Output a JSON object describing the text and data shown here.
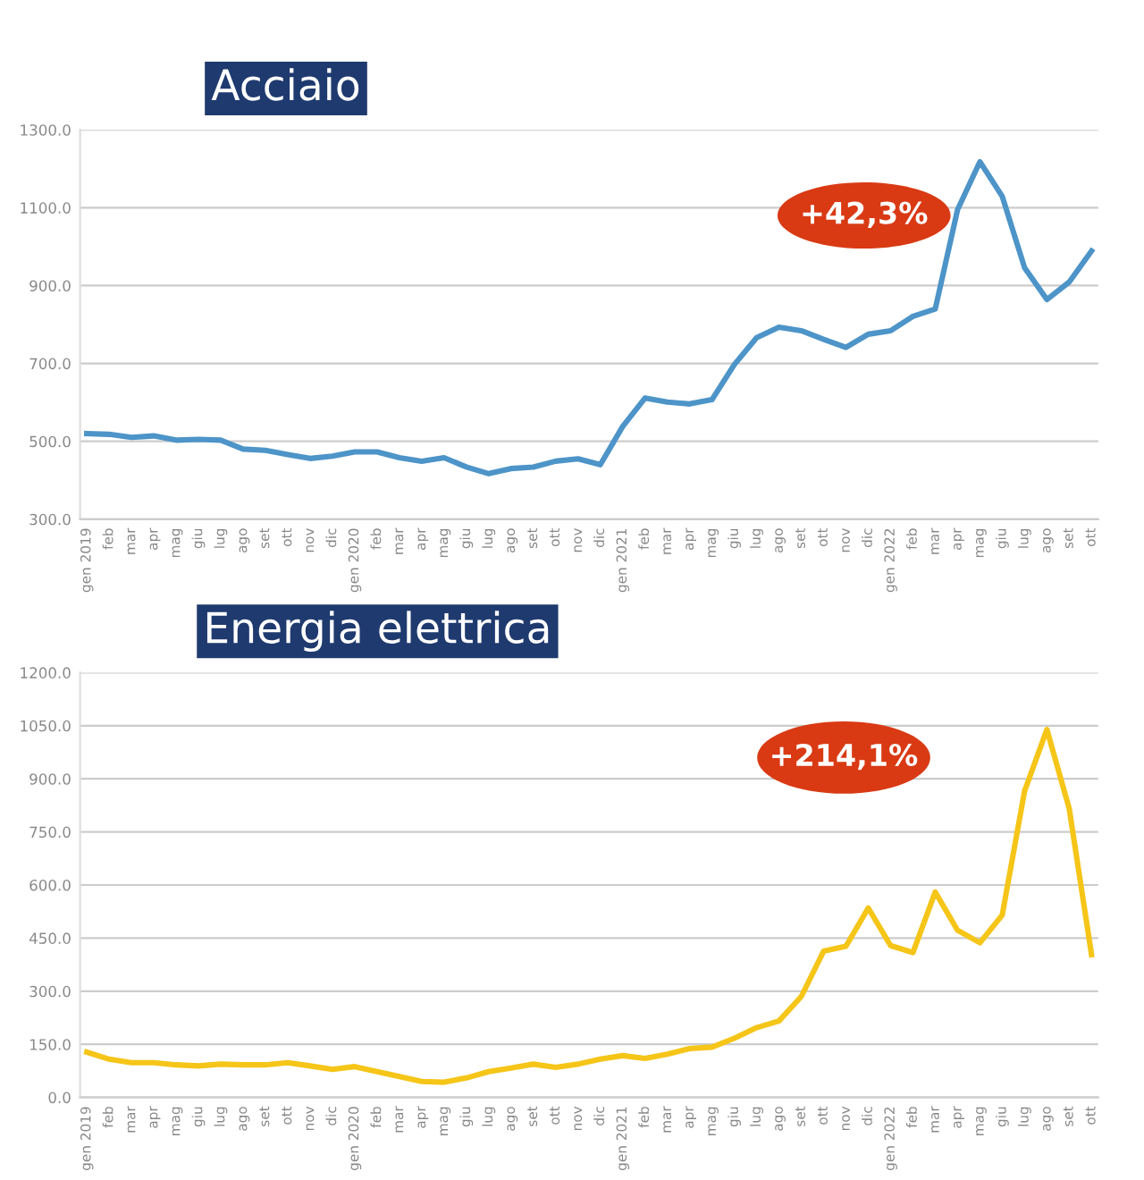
{
  "chart_data": [
    {
      "type": "line",
      "title": "Acciaio",
      "categories": [
        "gen 2019",
        "feb",
        "mar",
        "apr",
        "mag",
        "giu",
        "lug",
        "ago",
        "set",
        "ott",
        "nov",
        "dic",
        "gen 2020",
        "feb",
        "mar",
        "apr",
        "mag",
        "giu",
        "lug",
        "ago",
        "set",
        "ott",
        "nov",
        "dic",
        "gen 2021",
        "feb",
        "mar",
        "apr",
        "mag",
        "giu",
        "lug",
        "ago",
        "set",
        "ott",
        "nov",
        "dic",
        "gen 2022",
        "feb",
        "mar",
        "apr",
        "mag",
        "giu",
        "lug",
        "ago",
        "set",
        "ott"
      ],
      "series": [
        {
          "color": "#4d94c8",
          "values": [
            520,
            518,
            510,
            514,
            503,
            505,
            503,
            480,
            477,
            466,
            456,
            462,
            473,
            473,
            458,
            449,
            458,
            434,
            417,
            430,
            434,
            449,
            455,
            440,
            538,
            611,
            601,
            596,
            607,
            697,
            766,
            793,
            784,
            762,
            741,
            775,
            784,
            821,
            840,
            1095,
            1218,
            1129,
            946,
            864,
            909,
            989
          ]
        }
      ],
      "ylim": [
        300,
        1300
      ],
      "yticks": [
        {
          "value": 300,
          "label": "300.0"
        },
        {
          "value": 500,
          "label": "500.0"
        },
        {
          "value": 700,
          "label": "700.0"
        },
        {
          "value": 900,
          "label": "900.0"
        },
        {
          "value": 1100,
          "label": "1100.0"
        },
        {
          "value": 1300,
          "label": "1300.0"
        }
      ],
      "grid": "y",
      "annotations": [
        "+42,3%"
      ]
    },
    {
      "type": "line",
      "title": "Energia elettrica",
      "categories": [
        "gen 2019",
        "feb",
        "mar",
        "apr",
        "mag",
        "giu",
        "lug",
        "ago",
        "set",
        "ott",
        "nov",
        "dic",
        "gen 2020",
        "feb",
        "mar",
        "apr",
        "mag",
        "giu",
        "lug",
        "ago",
        "set",
        "ott",
        "nov",
        "dic",
        "gen 2021",
        "feb",
        "mar",
        "apr",
        "mag",
        "giu",
        "lug",
        "ago",
        "set",
        "ott",
        "nov",
        "dic",
        "gen 2022",
        "feb",
        "mar",
        "apr",
        "mag",
        "giu",
        "lug",
        "ago",
        "set",
        "ott"
      ],
      "series": [
        {
          "color": "#f5c518",
          "values": [
            128,
            108,
            98,
            98,
            92,
            89,
            94,
            92,
            92,
            98,
            89,
            79,
            87,
            73,
            59,
            45,
            43,
            55,
            73,
            83,
            94,
            85,
            94,
            108,
            118,
            110,
            122,
            138,
            142,
            167,
            197,
            216,
            285,
            413,
            427,
            535,
            429,
            409,
            580,
            472,
            437,
            515,
            865,
            1039,
            816,
            403
          ]
        }
      ],
      "ylim": [
        0,
        1200
      ],
      "yticks": [
        {
          "value": 0,
          "label": "0.0"
        },
        {
          "value": 150,
          "label": "150.0"
        },
        {
          "value": 300,
          "label": "300.0"
        },
        {
          "value": 450,
          "label": "450.0"
        },
        {
          "value": 600,
          "label": "600.0"
        },
        {
          "value": 750,
          "label": "750.0"
        },
        {
          "value": 900,
          "label": "900.0"
        },
        {
          "value": 1050,
          "label": "1050.0"
        },
        {
          "value": 1200,
          "label": "1200.0"
        }
      ],
      "grid": "y",
      "annotations": [
        "+214,1%"
      ]
    }
  ]
}
